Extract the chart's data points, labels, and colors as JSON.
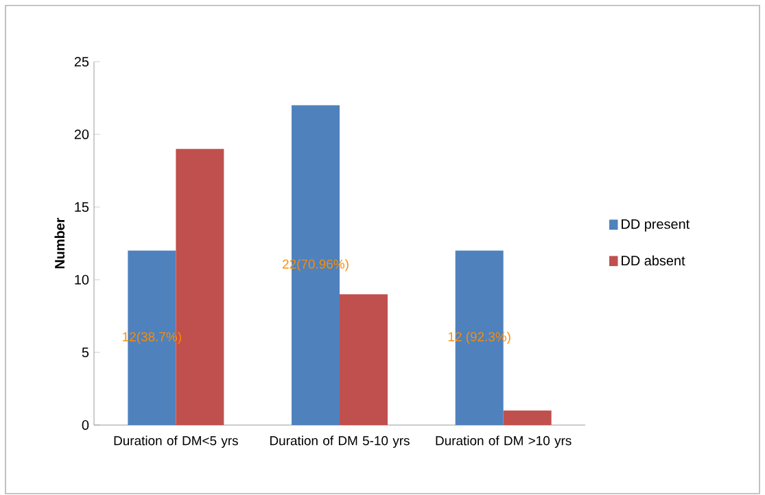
{
  "chart_data": {
    "type": "bar",
    "ylabel": "Number",
    "categories": [
      "Duration of DM<5 yrs",
      "Duration of DM 5-10 yrs",
      "Duration of DM >10 yrs"
    ],
    "series": [
      {
        "name": "DD present",
        "color": "#4f81bd",
        "values": [
          12,
          22,
          12
        ],
        "value_labels": [
          "12(38.7%)",
          "22(70.96%)",
          "12 (92.3%)"
        ]
      },
      {
        "name": "DD absent",
        "color": "#c0504d",
        "values": [
          19,
          9,
          1
        ]
      }
    ],
    "ylim": [
      0,
      25
    ],
    "yticks": [
      0,
      5,
      10,
      15,
      20,
      25
    ],
    "grid": false,
    "legend": "right"
  }
}
